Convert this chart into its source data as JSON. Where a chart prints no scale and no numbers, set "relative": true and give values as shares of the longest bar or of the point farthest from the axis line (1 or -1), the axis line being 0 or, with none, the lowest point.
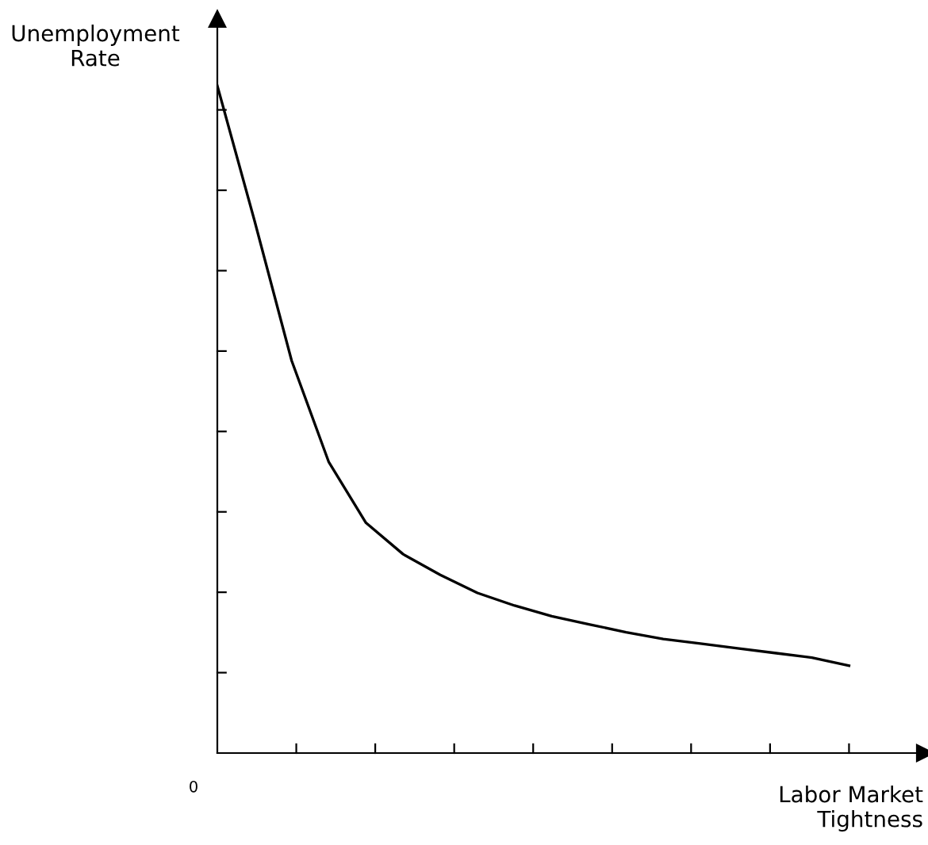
{
  "chart_data": {
    "type": "line",
    "relative": true,
    "xlabel": "Labor Market\nTightness",
    "ylabel": "Unemployment\nRate",
    "categories": [
      null,
      null,
      null,
      null,
      null,
      null,
      null,
      null,
      null,
      null,
      null,
      null,
      null,
      null,
      null,
      null,
      null,
      null
    ],
    "series": [
      {
        "color": "#000000",
        "values": [
          1.0,
          0.798,
          0.588,
          0.436,
          0.345,
          0.298,
          0.267,
          0.24,
          0.221,
          0.205,
          0.193,
          0.181,
          0.171,
          0.164,
          0.157,
          0.15,
          0.143,
          0.131
        ]
      }
    ],
    "annotations": [
      "0"
    ],
    "legend": false,
    "marker": "none",
    "line_style": "solid"
  }
}
